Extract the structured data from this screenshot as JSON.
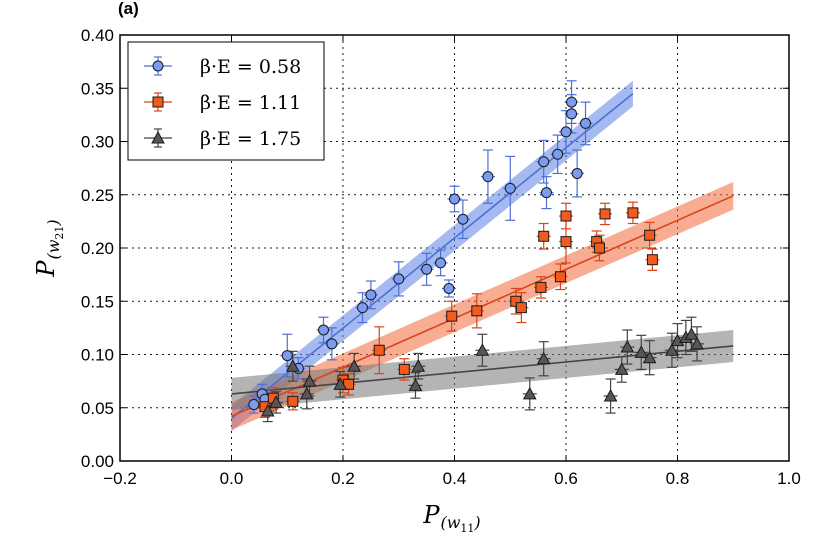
{
  "chart_data": {
    "type": "scatter",
    "panel_label": "(a)",
    "xlabel": "P(w11)",
    "ylabel": "P(w21)",
    "xlim": [
      -0.2,
      1.0
    ],
    "ylim": [
      0.0,
      0.4
    ],
    "xticks": [
      "−0.2",
      "0.0",
      "0.2",
      "0.4",
      "0.6",
      "0.8",
      "1.0"
    ],
    "xtick_values": [
      -0.2,
      0.0,
      0.2,
      0.4,
      0.6,
      0.8,
      1.0
    ],
    "yticks": [
      "0.00",
      "0.05",
      "0.10",
      "0.15",
      "0.20",
      "0.25",
      "0.30",
      "0.35",
      "0.40"
    ],
    "ytick_values": [
      0.0,
      0.05,
      0.1,
      0.15,
      0.2,
      0.25,
      0.3,
      0.35,
      0.4
    ],
    "grid": true,
    "legend_position": "top-left",
    "series": [
      {
        "name": "β · E = 0.58",
        "legend_label": "β·E = 0.58",
        "marker": "circle",
        "color": "#4f6fd8",
        "fill_color": "#7b9cf0",
        "band_color": "#5a82e6",
        "fit": {
          "x": [
            0.0,
            0.72
          ],
          "y": [
            0.04,
            0.345
          ],
          "band_halfwidth": 0.012
        },
        "points": [
          {
            "x": 0.04,
            "y": 0.053,
            "yerr": 0.008
          },
          {
            "x": 0.055,
            "y": 0.063,
            "yerr": 0.009
          },
          {
            "x": 0.06,
            "y": 0.058,
            "yerr": 0.008
          },
          {
            "x": 0.1,
            "y": 0.099,
            "yerr": 0.02
          },
          {
            "x": 0.12,
            "y": 0.087,
            "yerr": 0.01
          },
          {
            "x": 0.165,
            "y": 0.123,
            "yerr": 0.012
          },
          {
            "x": 0.18,
            "y": 0.11,
            "yerr": 0.015
          },
          {
            "x": 0.235,
            "y": 0.144,
            "yerr": 0.014
          },
          {
            "x": 0.25,
            "y": 0.156,
            "yerr": 0.013
          },
          {
            "x": 0.3,
            "y": 0.171,
            "yerr": 0.016
          },
          {
            "x": 0.35,
            "y": 0.18,
            "yerr": 0.015
          },
          {
            "x": 0.375,
            "y": 0.186,
            "yerr": 0.012
          },
          {
            "x": 0.39,
            "y": 0.162,
            "yerr": 0.008
          },
          {
            "x": 0.4,
            "y": 0.246,
            "yerr": 0.012
          },
          {
            "x": 0.415,
            "y": 0.227,
            "yerr": 0.018
          },
          {
            "x": 0.46,
            "y": 0.267,
            "yerr": 0.025
          },
          {
            "x": 0.5,
            "y": 0.256,
            "yerr": 0.03
          },
          {
            "x": 0.56,
            "y": 0.281,
            "yerr": 0.02
          },
          {
            "x": 0.565,
            "y": 0.252,
            "yerr": 0.015
          },
          {
            "x": 0.585,
            "y": 0.288,
            "yerr": 0.018
          },
          {
            "x": 0.6,
            "y": 0.309,
            "yerr": 0.02
          },
          {
            "x": 0.61,
            "y": 0.337,
            "yerr": 0.02
          },
          {
            "x": 0.61,
            "y": 0.326,
            "yerr": 0.018
          },
          {
            "x": 0.62,
            "y": 0.27,
            "yerr": 0.022
          },
          {
            "x": 0.635,
            "y": 0.317,
            "yerr": 0.02
          }
        ]
      },
      {
        "name": "β · E = 1.11",
        "legend_label": "β·E = 1.11",
        "marker": "square",
        "color": "#d94418",
        "fill_color": "#f35a1e",
        "band_color": "#f26a3b",
        "fit": {
          "x": [
            0.0,
            0.9
          ],
          "y": [
            0.042,
            0.249
          ],
          "band_halfwidth": 0.013
        },
        "points": [
          {
            "x": 0.06,
            "y": 0.051,
            "yerr": 0.01
          },
          {
            "x": 0.075,
            "y": 0.059,
            "yerr": 0.01
          },
          {
            "x": 0.11,
            "y": 0.056,
            "yerr": 0.008
          },
          {
            "x": 0.2,
            "y": 0.076,
            "yerr": 0.012
          },
          {
            "x": 0.21,
            "y": 0.072,
            "yerr": 0.01
          },
          {
            "x": 0.265,
            "y": 0.104,
            "yerr": 0.022
          },
          {
            "x": 0.31,
            "y": 0.086,
            "yerr": 0.01
          },
          {
            "x": 0.395,
            "y": 0.136,
            "yerr": 0.014
          },
          {
            "x": 0.44,
            "y": 0.141,
            "yerr": 0.016
          },
          {
            "x": 0.51,
            "y": 0.15,
            "yerr": 0.012
          },
          {
            "x": 0.52,
            "y": 0.144,
            "yerr": 0.014
          },
          {
            "x": 0.555,
            "y": 0.163,
            "yerr": 0.01
          },
          {
            "x": 0.56,
            "y": 0.211,
            "yerr": 0.012
          },
          {
            "x": 0.59,
            "y": 0.173,
            "yerr": 0.012
          },
          {
            "x": 0.6,
            "y": 0.206,
            "yerr": 0.02
          },
          {
            "x": 0.6,
            "y": 0.23,
            "yerr": 0.012
          },
          {
            "x": 0.655,
            "y": 0.206,
            "yerr": 0.01
          },
          {
            "x": 0.66,
            "y": 0.2,
            "yerr": 0.012
          },
          {
            "x": 0.67,
            "y": 0.232,
            "yerr": 0.01
          },
          {
            "x": 0.72,
            "y": 0.233,
            "yerr": 0.01
          },
          {
            "x": 0.75,
            "y": 0.212,
            "yerr": 0.012
          },
          {
            "x": 0.755,
            "y": 0.189,
            "yerr": 0.01
          }
        ]
      },
      {
        "name": "β · E = 1.75",
        "legend_label": "β·E = 1.75",
        "marker": "triangle",
        "color": "#444444",
        "fill_color": "#575757",
        "band_color": "#777777",
        "fit": {
          "x": [
            0.0,
            0.9
          ],
          "y": [
            0.063,
            0.108
          ],
          "band_halfwidth": 0.015
        },
        "points": [
          {
            "x": 0.065,
            "y": 0.047,
            "yerr": 0.01
          },
          {
            "x": 0.08,
            "y": 0.055,
            "yerr": 0.01
          },
          {
            "x": 0.11,
            "y": 0.089,
            "yerr": 0.014
          },
          {
            "x": 0.135,
            "y": 0.063,
            "yerr": 0.014
          },
          {
            "x": 0.14,
            "y": 0.075,
            "yerr": 0.014
          },
          {
            "x": 0.195,
            "y": 0.072,
            "yerr": 0.012
          },
          {
            "x": 0.22,
            "y": 0.089,
            "yerr": 0.012
          },
          {
            "x": 0.33,
            "y": 0.071,
            "yerr": 0.012
          },
          {
            "x": 0.335,
            "y": 0.089,
            "yerr": 0.012
          },
          {
            "x": 0.45,
            "y": 0.104,
            "yerr": 0.015
          },
          {
            "x": 0.535,
            "y": 0.063,
            "yerr": 0.015
          },
          {
            "x": 0.56,
            "y": 0.096,
            "yerr": 0.016
          },
          {
            "x": 0.68,
            "y": 0.061,
            "yerr": 0.016
          },
          {
            "x": 0.7,
            "y": 0.086,
            "yerr": 0.012
          },
          {
            "x": 0.71,
            "y": 0.107,
            "yerr": 0.016
          },
          {
            "x": 0.735,
            "y": 0.102,
            "yerr": 0.016
          },
          {
            "x": 0.75,
            "y": 0.097,
            "yerr": 0.016
          },
          {
            "x": 0.79,
            "y": 0.104,
            "yerr": 0.016
          },
          {
            "x": 0.8,
            "y": 0.113,
            "yerr": 0.016
          },
          {
            "x": 0.815,
            "y": 0.116,
            "yerr": 0.016
          },
          {
            "x": 0.825,
            "y": 0.119,
            "yerr": 0.016
          },
          {
            "x": 0.835,
            "y": 0.11,
            "yerr": 0.016
          }
        ]
      }
    ]
  }
}
